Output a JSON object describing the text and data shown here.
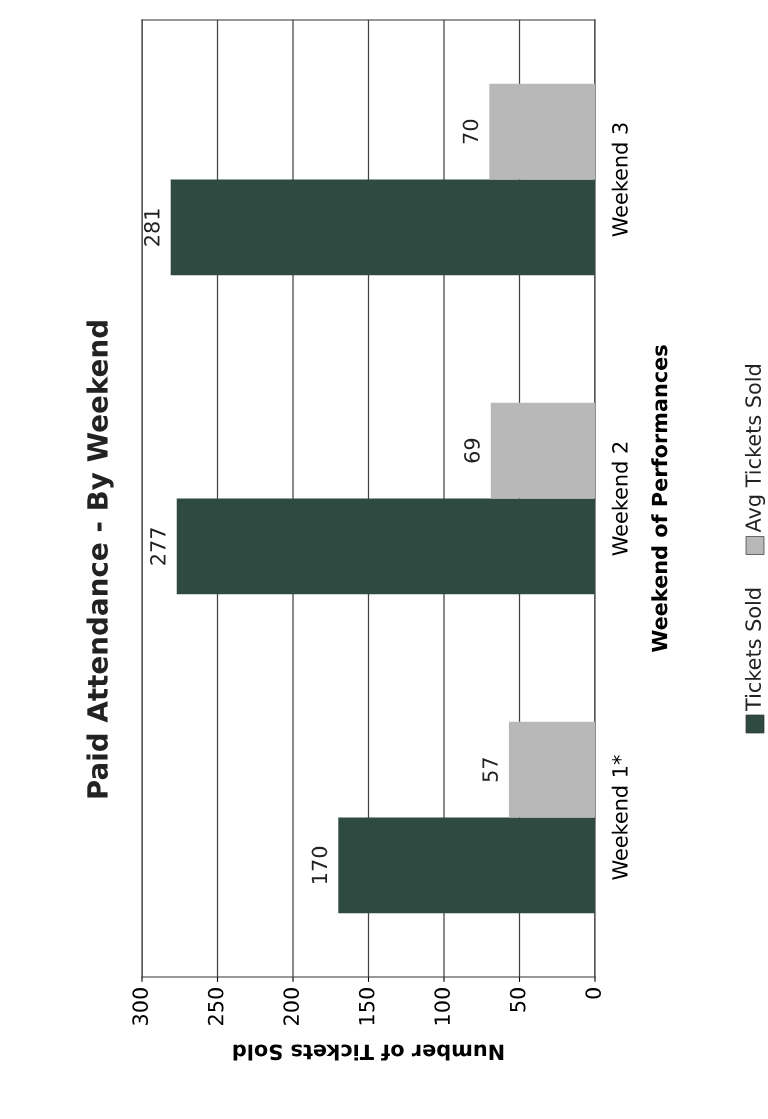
{
  "chart_data": {
    "type": "bar",
    "orientation": "horizontal",
    "title": "Paid Attendance - By Weekend",
    "xlabel": "Number of Tickets Sold",
    "ylabel": "Weekend of Performances",
    "categories": [
      "Weekend 3",
      "Weekend 2",
      "Weekend 1*"
    ],
    "series": [
      {
        "name": "Tickets Sold",
        "color": "#2f4a40",
        "values": [
          281,
          277,
          170
        ]
      },
      {
        "name": "Avg Tickets Sold",
        "color": "#b8b8b8",
        "values": [
          70,
          69,
          57
        ]
      }
    ],
    "xlim": [
      300,
      0
    ],
    "xticks": [
      0,
      50,
      100,
      150,
      200,
      250,
      300
    ],
    "grid": "x",
    "legend": "right",
    "data_labels": true
  }
}
